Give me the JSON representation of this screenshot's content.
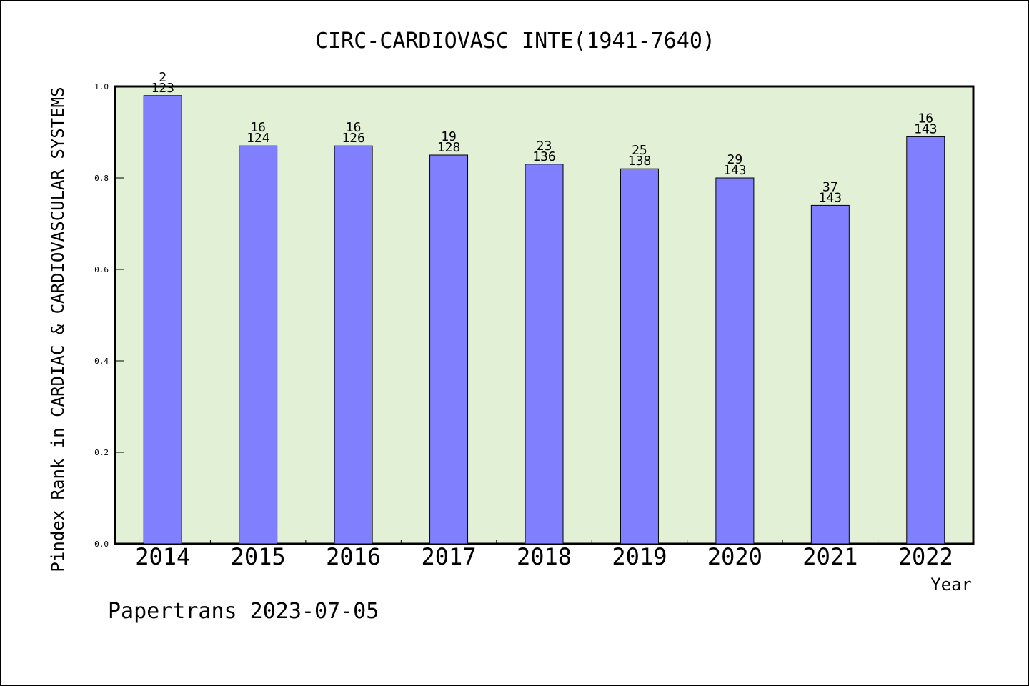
{
  "chart_data": {
    "type": "bar",
    "title": "CIRC-CARDIOVASC INTE(1941-7640)",
    "xlabel": "Year",
    "ylabel": "Pindex Rank in CARDIAC & CARDIOVASCULAR SYSTEMS",
    "footer": "Papertrans 2023-07-05",
    "ylim": [
      0,
      1.0
    ],
    "y_ticks": [
      "0.0",
      "0.2",
      "0.4",
      "0.6",
      "0.8",
      "1.0"
    ],
    "grid": false,
    "legend": "none",
    "categories": [
      "2014",
      "2015",
      "2016",
      "2017",
      "2018",
      "2019",
      "2020",
      "2021",
      "2022"
    ],
    "values": [
      0.98,
      0.87,
      0.87,
      0.85,
      0.83,
      0.82,
      0.8,
      0.74,
      0.89
    ],
    "rank": [
      "2",
      "16",
      "16",
      "19",
      "23",
      "25",
      "29",
      "37",
      "16"
    ],
    "total": [
      "123",
      "124",
      "126",
      "128",
      "136",
      "138",
      "143",
      "143",
      "143"
    ],
    "colors": {
      "bar": "#8080ff",
      "plot_bg": "#e2f0d6",
      "border": "#000000"
    }
  }
}
